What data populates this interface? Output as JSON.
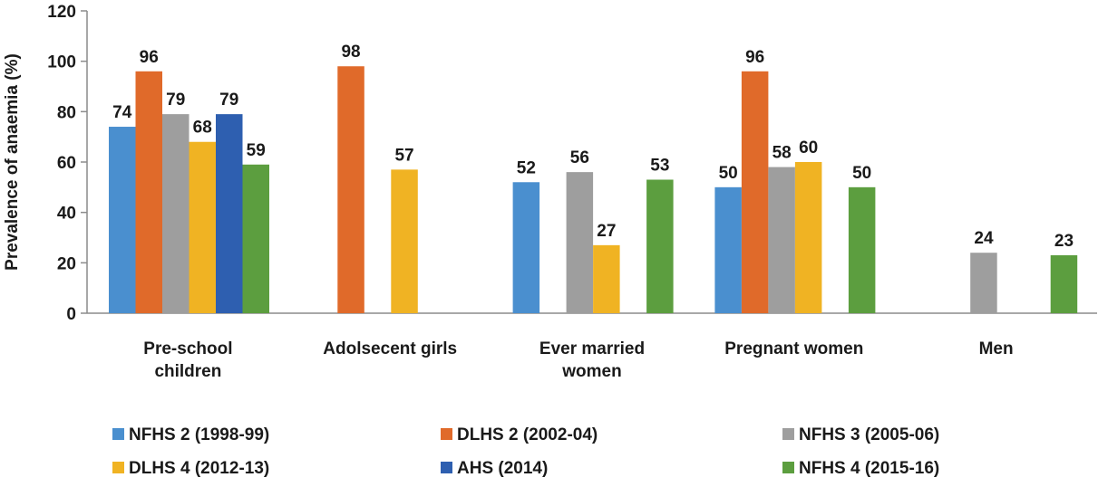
{
  "chart_data": {
    "type": "bar",
    "title": "",
    "xlabel": "",
    "ylabel": "Prevalence of anaemia (%)",
    "ylim": [
      0,
      120
    ],
    "yticks": [
      0,
      20,
      40,
      60,
      80,
      100,
      120
    ],
    "grid": false,
    "legend_position": "bottom",
    "categories": [
      [
        "Pre-school",
        "children"
      ],
      [
        "Adolsecent girls"
      ],
      [
        "Ever married",
        "women"
      ],
      [
        "Pregnant women"
      ],
      [
        "Men"
      ]
    ],
    "series": [
      {
        "name": "NFHS 2 (1998-99)",
        "color": "#4a8fcf",
        "values": [
          74,
          null,
          52,
          50,
          null
        ]
      },
      {
        "name": "DLHS 2 (2002-04)",
        "color": "#e06a2a",
        "values": [
          96,
          98,
          null,
          96,
          null
        ]
      },
      {
        "name": "NFHS 3 (2005-06)",
        "color": "#9e9e9e",
        "values": [
          79,
          null,
          56,
          58,
          24
        ]
      },
      {
        "name": "DLHS 4 (2012-13)",
        "color": "#f0b323",
        "values": [
          68,
          57,
          27,
          60,
          null
        ]
      },
      {
        "name": "AHS (2014)",
        "color": "#2e5fb0",
        "values": [
          79,
          null,
          null,
          null,
          null
        ]
      },
      {
        "name": "NFHS 4 (2015-16)",
        "color": "#5c9e3f",
        "values": [
          59,
          null,
          53,
          50,
          23
        ]
      }
    ]
  }
}
